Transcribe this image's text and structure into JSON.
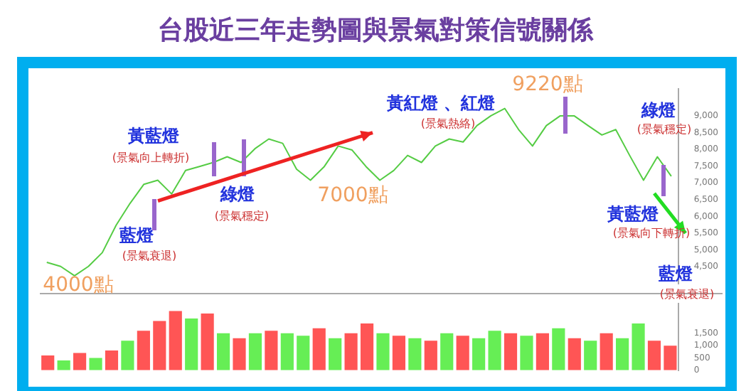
{
  "chart_data": [
    {
      "type": "line",
      "title": "台股近三年走勢圖與景氣對策信號關係",
      "categories": [
        null,
        null,
        null,
        null,
        null,
        null,
        null,
        null,
        null,
        null,
        null,
        null,
        null,
        null,
        null,
        null,
        null,
        null,
        null,
        null,
        null,
        null,
        null,
        null,
        null,
        null,
        null,
        null,
        null,
        null,
        null,
        null,
        null,
        null,
        null,
        null,
        null,
        null,
        null,
        null,
        null,
        null,
        null,
        null,
        null,
        null
      ],
      "series": [
        {
          "color": "#55cc44",
          "values": [
            4630,
            4510,
            4230,
            4510,
            4920,
            5740,
            6390,
            6960,
            7080,
            6670,
            7370,
            7490,
            7610,
            7780,
            7610,
            8020,
            8310,
            8180,
            7410,
            7080,
            7490,
            8100,
            7980,
            7490,
            7080,
            7370,
            7820,
            7610,
            8100,
            8310,
            8220,
            8710,
            9000,
            9220,
            8590,
            8100,
            8710,
            9000,
            9000,
            8710,
            8430,
            8590,
            7820,
            7080,
            7780,
            7200
          ]
        }
      ],
      "ylim": [
        4000,
        9800
      ],
      "yticks": [
        {
          "value": 4500,
          "label": "4,500"
        },
        {
          "value": 5000,
          "label": "5,000"
        },
        {
          "value": 5500,
          "label": "5,500"
        },
        {
          "value": 6000,
          "label": "6,000"
        },
        {
          "value": 6500,
          "label": "6,500"
        },
        {
          "value": 7000,
          "label": "7,000"
        },
        {
          "value": 7500,
          "label": "7,500"
        },
        {
          "value": 8000,
          "label": "8,000"
        },
        {
          "value": 8500,
          "label": "8,500"
        },
        {
          "value": 9000,
          "label": "9,000"
        }
      ],
      "grid": false,
      "legend": false,
      "tick_labels": "y",
      "marker": "none",
      "line_style": "solid",
      "annotations": [
        "黃藍燈",
        "(景氣向上轉折)",
        "藍燈",
        "(景氣衰退)",
        "綠燈",
        "(景氣穩定)",
        "7000點",
        "黃紅燈 、紅燈",
        "(景氣熱絡)",
        "9220點",
        "綠燈",
        "(景氣穩定)",
        "黃藍燈",
        "(景氣向下轉折)",
        "藍燈",
        "(景氣衰退)",
        "4000點"
      ]
    },
    {
      "type": "bar",
      "categories": [
        null,
        null,
        null,
        null,
        null,
        null,
        null,
        null,
        null,
        null,
        null,
        null,
        null,
        null,
        null,
        null,
        null,
        null,
        null,
        null,
        null,
        null,
        null,
        null,
        null,
        null,
        null,
        null,
        null,
        null,
        null,
        null,
        null,
        null,
        null,
        null,
        null,
        null,
        null,
        null
      ],
      "values": [
        600,
        400,
        700,
        500,
        800,
        1200,
        1600,
        2000,
        2400,
        2100,
        2300,
        1500,
        1300,
        1500,
        1600,
        1500,
        1400,
        1700,
        1300,
        1500,
        1900,
        1500,
        1400,
        1300,
        1200,
        1500,
        1400,
        1300,
        1600,
        1500,
        1400,
        1500,
        1700,
        1300,
        1200,
        1500,
        1300,
        1900,
        1200,
        1000
      ],
      "colors": [
        "#ff5555",
        "#66ee55",
        "#ff5555",
        "#66ee55",
        "#ff5555",
        "#66ee55",
        "#ff5555",
        "#ff5555",
        "#ff5555",
        "#66ee55",
        "#ff5555",
        "#66ee55",
        "#ff5555",
        "#66ee55",
        "#ff5555",
        "#66ee55",
        "#66ee55",
        "#ff5555",
        "#66ee55",
        "#ff5555",
        "#ff5555",
        "#66ee55",
        "#ff5555",
        "#66ee55",
        "#ff5555",
        "#66ee55",
        "#ff5555",
        "#66ee55",
        "#66ee55",
        "#ff5555",
        "#66ee55",
        "#ff5555",
        "#66ee55",
        "#ff5555",
        "#66ee55",
        "#ff5555",
        "#66ee55",
        "#66ee55",
        "#ff5555",
        "#ff5555"
      ],
      "ylim": [
        0,
        2700
      ],
      "yticks": [
        0,
        {
          "value": 500,
          "label": "500"
        },
        {
          "value": 1000,
          "label": "1,000"
        },
        {
          "value": 1500,
          "label": "1,500"
        }
      ],
      "grid": false,
      "legend": false,
      "tick_labels": "y"
    }
  ]
}
